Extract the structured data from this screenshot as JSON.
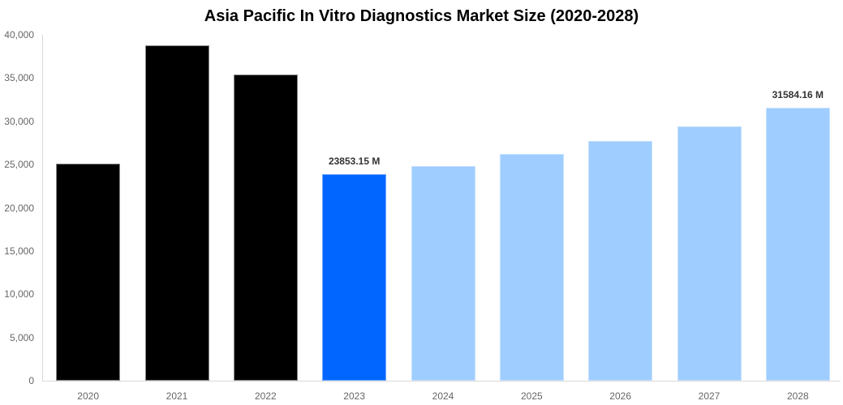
{
  "chart_data": {
    "type": "bar",
    "title": "Asia Pacific In Vitro Diagnostics Market Size (2020-2028)",
    "xlabel": "",
    "ylabel": "",
    "ylim": [
      0,
      40000
    ],
    "yticks": [
      "0",
      "5,000",
      "10,000",
      "15,000",
      "20,000",
      "25,000",
      "30,000",
      "35,000",
      "40,000"
    ],
    "grid": false,
    "legend": null,
    "categories": [
      "2020",
      "2021",
      "2022",
      "2023",
      "2024",
      "2025",
      "2026",
      "2027",
      "2028"
    ],
    "values": [
      25100,
      38780,
      35410,
      23853.15,
      24830,
      26230,
      27700,
      29440,
      31584.16
    ],
    "bar_kinds": [
      "historical",
      "historical",
      "historical",
      "current",
      "forecast",
      "forecast",
      "forecast",
      "forecast",
      "forecast"
    ],
    "colors": {
      "historical": "#000000",
      "current": "#0066ff",
      "forecast": "#a0cdff"
    },
    "annotations": [
      {
        "category": "2023",
        "text": "23853.15 M"
      },
      {
        "category": "2028",
        "text": "31584.16 M"
      }
    ]
  }
}
